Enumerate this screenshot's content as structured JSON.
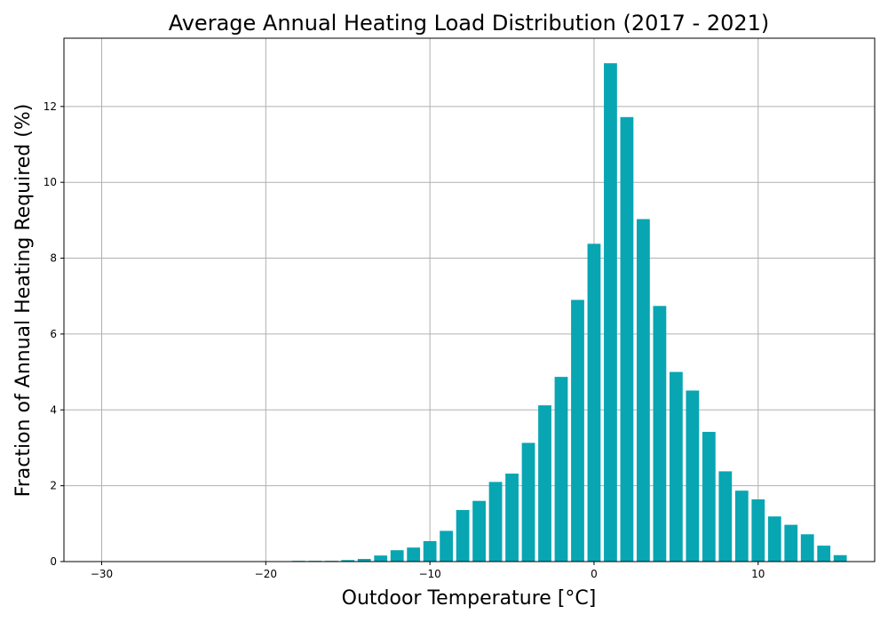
{
  "chart_data": {
    "type": "bar",
    "title": "Average Annual Heating Load Distribution (2017 - 2021)",
    "xlabel": "Outdoor Temperature [°C]",
    "ylabel": "Fraction of Annual Heating Required (%)",
    "xlim": [
      -32.3,
      17.1
    ],
    "ylim": [
      0,
      13.8
    ],
    "xticks": [
      -30,
      -20,
      -10,
      0,
      10
    ],
    "xtick_labels": [
      "−30",
      "−20",
      "−10",
      "0",
      "10"
    ],
    "yticks": [
      0,
      2,
      4,
      6,
      8,
      10,
      12
    ],
    "ytick_labels": [
      "0",
      "2",
      "4",
      "6",
      "8",
      "10",
      "12"
    ],
    "grid": true,
    "bar_color": "#07a6b2",
    "bar_width": 0.8,
    "x": [
      -30,
      -29,
      -28,
      -27,
      -26,
      -25,
      -24,
      -23,
      -22,
      -21,
      -20,
      -19,
      -18,
      -17,
      -16,
      -15,
      -14,
      -13,
      -12,
      -11,
      -10,
      -9,
      -8,
      -7,
      -6,
      -5,
      -4,
      -3,
      -2,
      -1,
      0,
      1,
      2,
      3,
      4,
      5,
      6,
      7,
      8,
      9,
      10,
      11,
      12,
      13,
      14,
      15
    ],
    "values": [
      0,
      0,
      0,
      0,
      0,
      0,
      0,
      0,
      0.01,
      0.01,
      0.01,
      0.01,
      0.02,
      0.02,
      0.02,
      0.04,
      0.07,
      0.16,
      0.3,
      0.37,
      0.54,
      0.81,
      1.36,
      1.6,
      2.1,
      2.32,
      3.13,
      4.12,
      4.87,
      6.9,
      8.38,
      13.14,
      11.72,
      9.03,
      6.74,
      5.0,
      4.51,
      3.42,
      2.38,
      1.87,
      1.64,
      1.19,
      0.97,
      0.72,
      0.42,
      0.17
    ]
  }
}
